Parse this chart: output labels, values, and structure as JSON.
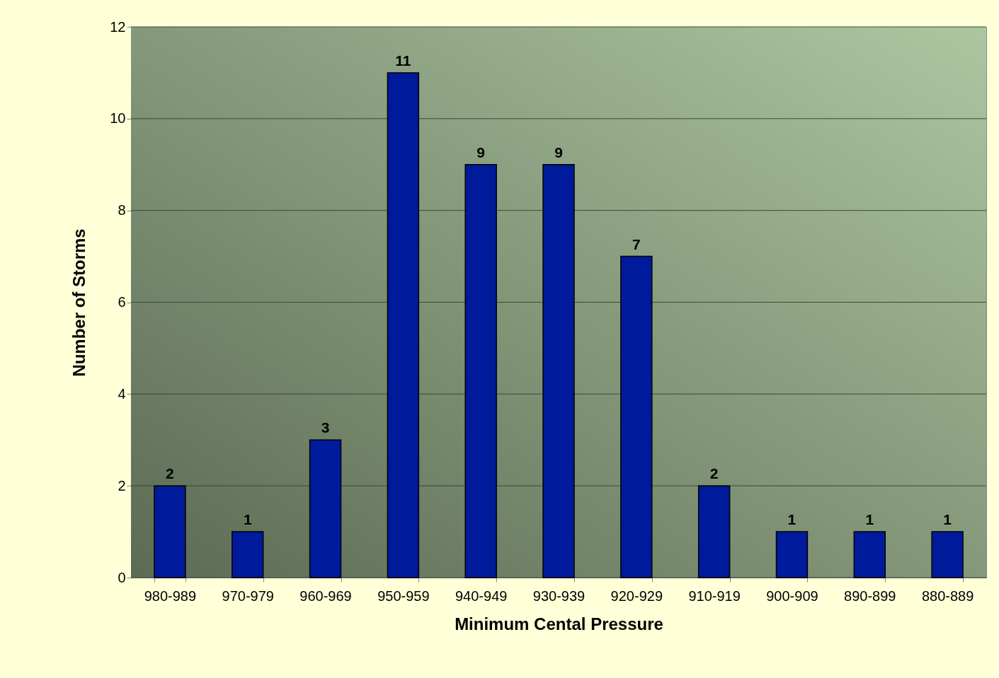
{
  "chart_data": {
    "type": "bar",
    "xlabel": "Minimum Cental Pressure",
    "ylabel": "Number of Storms",
    "categories": [
      "980-989",
      "970-979",
      "960-969",
      "950-959",
      "940-949",
      "930-939",
      "920-929",
      "910-919",
      "900-909",
      "890-899",
      "880-889"
    ],
    "values": [
      2,
      1,
      3,
      11,
      9,
      9,
      7,
      2,
      1,
      1,
      1
    ],
    "color": "#001a9c",
    "ylim": [
      0,
      12
    ],
    "yticks": [
      0,
      2,
      4,
      6,
      8,
      10,
      12
    ],
    "grid": "y",
    "data_labels": true
  }
}
